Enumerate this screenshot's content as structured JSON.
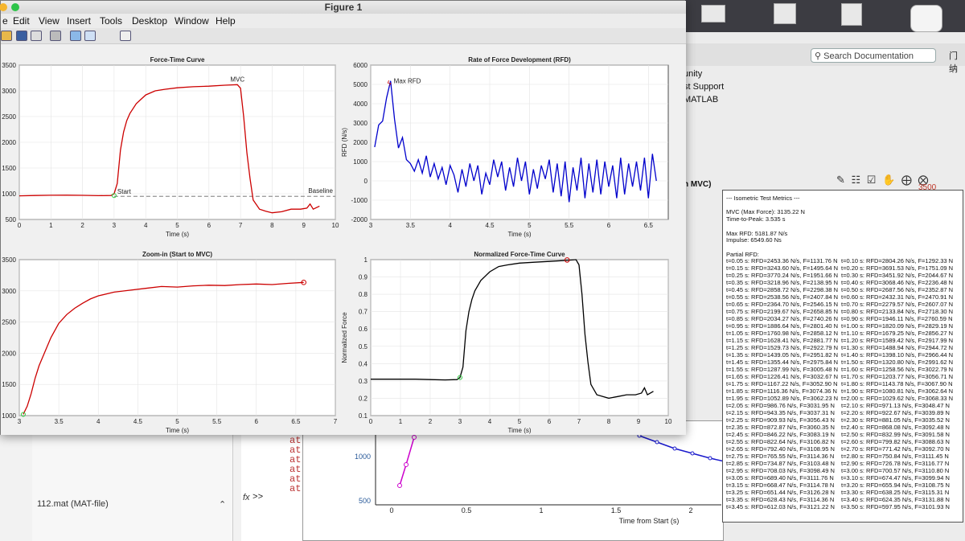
{
  "figure1": {
    "window_title": "Figure 1",
    "menu": [
      "e",
      "Edit",
      "View",
      "Insert",
      "Tools",
      "Desktop",
      "Window",
      "Help"
    ],
    "toolbar_icons": [
      "open-icon",
      "save-icon",
      "print-icon",
      "print-preview-icon",
      "link-icon",
      "insert-colorbar-icon",
      "insert-legend-icon"
    ]
  },
  "matlab_bg": {
    "search_placeholder": "Search Documentation",
    "user_label": "门纳",
    "items": [
      "unity",
      "st Support",
      "MATLAB"
    ],
    "red_value": "3500",
    "legend_fragment": "n MVC)",
    "file_label": "112.mat  (MAT-file)",
    "cmd_lines": [
      "at",
      "at",
      "at",
      "at",
      "at",
      "at"
    ],
    "prompt": ">>"
  },
  "figure2": {
    "xlabel": "Time from Start (s)",
    "xticks": [
      "0",
      "0.5",
      "1",
      "1.5",
      "2"
    ],
    "yticks": [
      "1000",
      "500"
    ]
  },
  "chart_data": [
    {
      "type": "line",
      "title": "Force-Time Curve",
      "xlabel": "Time (s)",
      "ylabel": "",
      "xlim": [
        0,
        10
      ],
      "ylim": [
        500,
        3500
      ],
      "xticks": [
        0,
        1,
        2,
        3,
        4,
        5,
        6,
        7,
        8,
        9,
        10
      ],
      "yticks": [
        500,
        1000,
        1500,
        2000,
        2500,
        3000,
        3500
      ],
      "x": [
        0,
        0.5,
        1,
        1.5,
        2,
        2.5,
        2.9,
        3.0,
        3.1,
        3.2,
        3.3,
        3.4,
        3.5,
        3.7,
        4.0,
        4.3,
        4.6,
        5.0,
        5.5,
        6.0,
        6.5,
        6.9,
        7.0,
        7.1,
        7.2,
        7.3,
        7.4,
        7.6,
        7.8,
        8.0,
        8.3,
        8.6,
        8.9,
        9.1,
        9.2,
        9.3,
        9.5
      ],
      "y": [
        960,
        965,
        970,
        972,
        968,
        962,
        965,
        1000,
        1200,
        1850,
        2200,
        2420,
        2560,
        2750,
        2920,
        3000,
        3030,
        3060,
        3080,
        3090,
        3110,
        3120,
        3050,
        2500,
        1800,
        1300,
        880,
        700,
        660,
        630,
        650,
        700,
        700,
        720,
        800,
        700,
        760
      ],
      "color": "#cc0000",
      "annotations": [
        {
          "label": "MVC",
          "x": 6.6,
          "y": 3135
        },
        {
          "label": "Start",
          "x": 3.0,
          "y": 965
        },
        {
          "label": "Baseline",
          "y": 950
        }
      ]
    },
    {
      "type": "line",
      "title": "Rate of Force Development (RFD)",
      "xlabel": "Time (s)",
      "ylabel": "RFD (N/s)",
      "xlim": [
        3,
        6.75
      ],
      "ylim": [
        -2000,
        6000
      ],
      "xticks": [
        3,
        3.5,
        4,
        4.5,
        5,
        5.5,
        6,
        6.5
      ],
      "yticks": [
        -2000,
        -1000,
        0,
        1000,
        2000,
        3000,
        4000,
        5000,
        6000
      ],
      "x": [
        3.05,
        3.1,
        3.15,
        3.2,
        3.25,
        3.3,
        3.35,
        3.4,
        3.45,
        3.5,
        3.55,
        3.6,
        3.65,
        3.7,
        3.75,
        3.8,
        3.85,
        3.9,
        3.95,
        4.0,
        4.05,
        4.1,
        4.15,
        4.2,
        4.25,
        4.3,
        4.35,
        4.4,
        4.45,
        4.5,
        4.55,
        4.6,
        4.65,
        4.7,
        4.75,
        4.8,
        4.85,
        4.9,
        4.95,
        5.0,
        5.05,
        5.1,
        5.15,
        5.2,
        5.25,
        5.3,
        5.35,
        5.4,
        5.45,
        5.5,
        5.55,
        5.6,
        5.65,
        5.7,
        5.75,
        5.8,
        5.85,
        5.9,
        5.95,
        6.0,
        6.05,
        6.1,
        6.15,
        6.2,
        6.25,
        6.3,
        6.35,
        6.4,
        6.45,
        6.5,
        6.55,
        6.6
      ],
      "y": [
        1750,
        2900,
        3100,
        4300,
        5180,
        3200,
        1700,
        2250,
        1100,
        900,
        500,
        1100,
        400,
        1300,
        200,
        900,
        100,
        700,
        -200,
        800,
        300,
        -600,
        600,
        -300,
        900,
        0,
        800,
        -700,
        400,
        -200,
        1100,
        200,
        1000,
        -500,
        700,
        -300,
        1200,
        0,
        1000,
        -700,
        600,
        -400,
        800,
        100,
        1100,
        -600,
        900,
        -800,
        1000,
        -1100,
        700,
        -500,
        1200,
        -900,
        900,
        -600,
        1100,
        -700,
        1000,
        -300,
        800,
        -900,
        1200,
        -700,
        900,
        -300,
        1000,
        -500,
        1200,
        -900,
        1400,
        0
      ],
      "color": "#0000cc",
      "annotations": [
        {
          "label": "Max RFD",
          "x": 3.25,
          "y": 5180
        }
      ]
    },
    {
      "type": "line",
      "title": "Zoom-in (Start to MVC)",
      "xlabel": "Time (s)",
      "ylabel": "",
      "xlim": [
        3,
        7
      ],
      "ylim": [
        1000,
        3500
      ],
      "xticks": [
        3,
        3.5,
        4,
        4.5,
        5,
        5.5,
        6,
        6.5,
        7
      ],
      "yticks": [
        1000,
        1500,
        2000,
        2500,
        3000,
        3500
      ],
      "x": [
        3.05,
        3.1,
        3.15,
        3.2,
        3.25,
        3.3,
        3.4,
        3.5,
        3.6,
        3.7,
        3.8,
        3.9,
        4.0,
        4.2,
        4.4,
        4.6,
        4.8,
        5.0,
        5.2,
        5.4,
        5.6,
        5.8,
        6.0,
        6.2,
        6.4,
        6.6
      ],
      "y": [
        1020,
        1150,
        1350,
        1600,
        1800,
        1950,
        2250,
        2480,
        2620,
        2720,
        2800,
        2870,
        2920,
        2980,
        3010,
        3040,
        3070,
        3060,
        3080,
        3090,
        3085,
        3100,
        3110,
        3100,
        3120,
        3135
      ],
      "color": "#cc0000"
    },
    {
      "type": "line",
      "title": "Normalized Force-Time Curve",
      "xlabel": "Time (s)",
      "ylabel": "Normalized Force",
      "xlim": [
        0,
        10
      ],
      "ylim": [
        0.1,
        1
      ],
      "xticks": [
        0,
        1,
        2,
        3,
        4,
        5,
        6,
        7,
        8,
        9,
        10
      ],
      "yticks": [
        0.1,
        0.2,
        0.3,
        0.4,
        0.5,
        0.6,
        0.7,
        0.8,
        0.9,
        1
      ],
      "x": [
        0,
        0.5,
        1,
        1.5,
        2,
        2.5,
        2.9,
        3.0,
        3.1,
        3.2,
        3.3,
        3.4,
        3.5,
        3.7,
        4.0,
        4.3,
        4.6,
        5.0,
        5.5,
        6.0,
        6.5,
        6.9,
        7.0,
        7.1,
        7.2,
        7.3,
        7.4,
        7.6,
        7.8,
        8.0,
        8.3,
        8.6,
        8.9,
        9.1,
        9.2,
        9.3,
        9.5
      ],
      "y": [
        0.31,
        0.31,
        0.31,
        0.31,
        0.308,
        0.306,
        0.308,
        0.32,
        0.38,
        0.59,
        0.7,
        0.77,
        0.82,
        0.88,
        0.93,
        0.96,
        0.97,
        0.98,
        0.985,
        0.99,
        0.995,
        1.0,
        0.97,
        0.8,
        0.57,
        0.41,
        0.28,
        0.22,
        0.21,
        0.2,
        0.21,
        0.22,
        0.22,
        0.23,
        0.26,
        0.22,
        0.24
      ],
      "color": "#000000"
    }
  ],
  "metrics": {
    "lines": [
      "--- Isometric Test Metrics ---",
      "",
      "MVC (Max Force): 3135.22 N",
      "Time-to-Peak: 3.535 s",
      "",
      "Max RFD: 5181.87 N/s",
      "Impulse: 6549.60 Ns",
      "",
      "Partial RFD:"
    ],
    "rfd_rows": [
      [
        "t=0.05 s: RFD=2453.36 N/s, F=1131.76 N",
        "t=0.10 s: RFD=2804.26 N/s, F=1292.33 N"
      ],
      [
        "t=0.15 s: RFD=3243.60 N/s, F=1495.64 N",
        "t=0.20 s: RFD=3691.53 N/s, F=1751.09 N"
      ],
      [
        "t=0.25 s: RFD=3770.24 N/s, F=1951.66 N",
        "t=0.30 s: RFD=3451.92 N/s, F=2044.67 N"
      ],
      [
        "t=0.35 s: RFD=3218.96 N/s, F=2138.95 N",
        "t=0.40 s: RFD=3068.46 N/s, F=2236.48 N"
      ],
      [
        "t=0.45 s: RFD=2858.72 N/s, F=2298.38 N",
        "t=0.50 s: RFD=2687.56 N/s, F=2352.87 N"
      ],
      [
        "t=0.55 s: RFD=2538.56 N/s, F=2407.84 N",
        "t=0.60 s: RFD=2432.31 N/s, F=2470.91 N"
      ],
      [
        "t=0.65 s: RFD=2364.70 N/s, F=2546.15 N",
        "t=0.70 s: RFD=2279.57 N/s, F=2607.07 N"
      ],
      [
        "t=0.75 s: RFD=2199.67 N/s, F=2658.85 N",
        "t=0.80 s: RFD=2133.84 N/s, F=2718.30 N"
      ],
      [
        "t=0.85 s: RFD=2034.27 N/s, F=2740.26 N",
        "t=0.90 s: RFD=1946.11 N/s, F=2760.59 N"
      ],
      [
        "t=0.95 s: RFD=1886.64 N/s, F=2801.40 N",
        "t=1.00 s: RFD=1820.09 N/s, F=2829.19 N"
      ],
      [
        "t=1.05 s: RFD=1760.98 N/s, F=2858.12 N",
        "t=1.10 s: RFD=1679.25 N/s, F=2856.27 N"
      ],
      [
        "t=1.15 s: RFD=1628.41 N/s, F=2881.77 N",
        "t=1.20 s: RFD=1589.42 N/s, F=2917.99 N"
      ],
      [
        "t=1.25 s: RFD=1529.73 N/s, F=2922.79 N",
        "t=1.30 s: RFD=1488.94 N/s, F=2944.72 N"
      ],
      [
        "t=1.35 s: RFD=1439.05 N/s, F=2951.82 N",
        "t=1.40 s: RFD=1398.10 N/s, F=2966.44 N"
      ],
      [
        "t=1.45 s: RFD=1355.44 N/s, F=2975.84 N",
        "t=1.50 s: RFD=1320.80 N/s, F=2991.62 N"
      ],
      [
        "t=1.55 s: RFD=1287.99 N/s, F=3005.48 N",
        "t=1.60 s: RFD=1258.56 N/s, F=3022.79 N"
      ],
      [
        "t=1.65 s: RFD=1226.41 N/s, F=3032.67 N",
        "t=1.70 s: RFD=1203.77 N/s, F=3056.71 N"
      ],
      [
        "t=1.75 s: RFD=1167.22 N/s, F=3052.90 N",
        "t=1.80 s: RFD=1143.78 N/s, F=3067.90 N"
      ],
      [
        "t=1.85 s: RFD=1116.36 N/s, F=3074.36 N",
        "t=1.90 s: RFD=1080.81 N/s, F=3062.64 N"
      ],
      [
        "t=1.95 s: RFD=1052.89 N/s, F=3062.23 N",
        "t=2.00 s: RFD=1029.62 N/s, F=3068.33 N"
      ],
      [
        "t=2.05 s: RFD=986.76 N/s, F=3031.95 N",
        "t=2.10 s: RFD=971.13 N/s, F=3048.47 N"
      ],
      [
        "t=2.15 s: RFD=943.35 N/s, F=3037.31 N",
        "t=2.20 s: RFD=922.67 N/s, F=3039.89 N"
      ],
      [
        "t=2.25 s: RFD=909.93 N/s, F=3056.43 N",
        "t=2.30 s: RFD=881.05 N/s, F=3035.52 N"
      ],
      [
        "t=2.35 s: RFD=872.87 N/s, F=3060.35 N",
        "t=2.40 s: RFD=868.08 N/s, F=3092.48 N"
      ],
      [
        "t=2.45 s: RFD=846.22 N/s, F=3083.19 N",
        "t=2.50 s: RFD=832.99 N/s, F=3091.58 N"
      ],
      [
        "t=2.55 s: RFD=822.64 N/s, F=3106.82 N",
        "t=2.60 s: RFD=799.82 N/s, F=3088.63 N"
      ],
      [
        "t=2.65 s: RFD=792.40 N/s, F=3108.95 N",
        "t=2.70 s: RFD=771.42 N/s, F=3092.70 N"
      ],
      [
        "t=2.75 s: RFD=765.55 N/s, F=3114.36 N",
        "t=2.80 s: RFD=750.84 N/s, F=3111.45 N"
      ],
      [
        "t=2.85 s: RFD=734.87 N/s, F=3103.48 N",
        "t=2.90 s: RFD=726.78 N/s, F=3116.77 N"
      ],
      [
        "t=2.95 s: RFD=708.03 N/s, F=3098.49 N",
        "t=3.00 s: RFD=700.57 N/s, F=3110.80 N"
      ],
      [
        "t=3.05 s: RFD=689.40 N/s, F=3111.76 N",
        "t=3.10 s: RFD=674.47 N/s, F=3099.94 N"
      ],
      [
        "t=3.15 s: RFD=668.47 N/s, F=3114.78 N",
        "t=3.20 s: RFD=655.94 N/s, F=3108.75 N"
      ],
      [
        "t=3.25 s: RFD=651.44 N/s, F=3126.28 N",
        "t=3.30 s: RFD=638.25 N/s, F=3115.31 N"
      ],
      [
        "t=3.35 s: RFD=628.43 N/s, F=3114.36 N",
        "t=3.40 s: RFD=624.35 N/s, F=3131.88 N"
      ],
      [
        "t=3.45 s: RFD=612.03 N/s, F=3121.22 N",
        "t=3.50 s: RFD=597.95 N/s, F=3101.93 N"
      ]
    ]
  }
}
